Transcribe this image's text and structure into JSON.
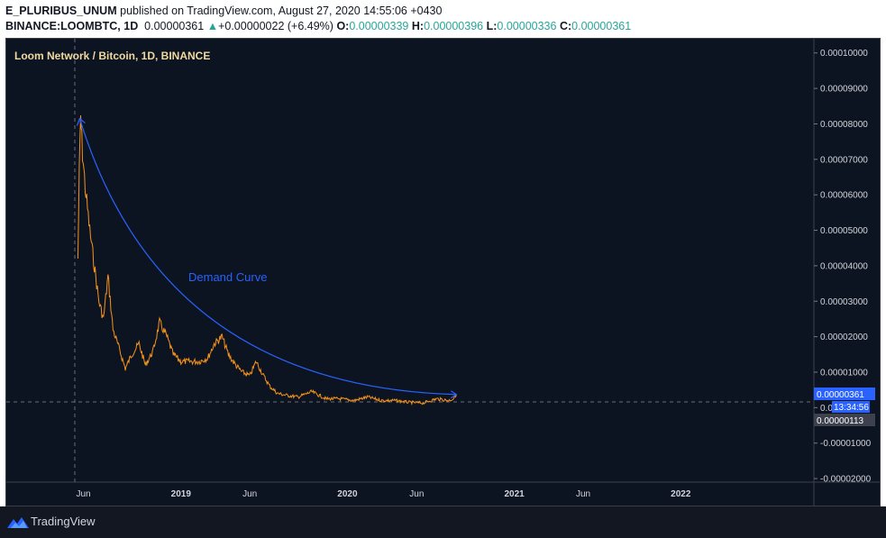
{
  "header": {
    "author": "E_PLURIBUS_UNUM",
    "published": "published on TradingView.com, August 27, 2020 14:55:06 +0430",
    "symbol": "BINANCE:LOOMBTC, 1D",
    "last": "0.00000361",
    "change": "+0.00000022 (+6.49%)",
    "o_label": "O:",
    "o": "0.00000339",
    "h_label": "H:",
    "h": "0.00000396",
    "l_label": "L:",
    "l": "0.00000336",
    "c_label": "C:",
    "c": "0.00000361"
  },
  "chart_data": {
    "type": "line",
    "title": "Loom Network / Bitcoin, 1D, BINANCE",
    "series": [
      {
        "name": "",
        "color": "#f7931a",
        "x": [
          "2018-05-20",
          "2018-05-23",
          "2018-05-26",
          "2018-05-30",
          "2018-06-05",
          "2018-06-15",
          "2018-06-25",
          "2018-07-05",
          "2018-07-15",
          "2018-07-25",
          "2018-08-05",
          "2018-08-20",
          "2018-09-01",
          "2018-09-15",
          "2018-10-01",
          "2018-10-15",
          "2018-11-01",
          "2018-11-15",
          "2018-12-01",
          "2018-12-15",
          "2019-01-01",
          "2019-01-20",
          "2019-02-10",
          "2019-03-01",
          "2019-03-15",
          "2019-04-01",
          "2019-04-15",
          "2019-05-01",
          "2019-05-15",
          "2019-06-01",
          "2019-06-15",
          "2019-07-01",
          "2019-07-15",
          "2019-08-01",
          "2019-08-20",
          "2019-09-15",
          "2019-10-15",
          "2019-11-15",
          "2019-12-15",
          "2020-01-15",
          "2020-02-15",
          "2020-03-15",
          "2020-04-15",
          "2020-05-15",
          "2020-06-15",
          "2020-07-15",
          "2020-08-10",
          "2020-08-20",
          "2020-08-27"
        ],
        "y": [
          4.2e-05,
          6.6e-05,
          8.2e-05,
          7.2e-05,
          6.2e-05,
          5e-05,
          4e-05,
          3e-05,
          2.5e-05,
          3.7e-05,
          2.2e-05,
          1.6e-05,
          1.1e-05,
          1.5e-05,
          1.8e-05,
          1.2e-05,
          1.6e-05,
          2.4e-05,
          2e-05,
          1.5e-05,
          1.3e-05,
          1.3e-05,
          1.3e-05,
          1.4e-05,
          1.8e-05,
          2e-05,
          1.5e-05,
          1.2e-05,
          1e-05,
          9e-06,
          1.3e-05,
          9e-06,
          6e-06,
          4e-06,
          3.5e-06,
          3e-06,
          4.5e-06,
          2.5e-06,
          2.5e-06,
          2e-06,
          3e-06,
          2e-06,
          2e-06,
          1.5e-06,
          1.3e-06,
          2.5e-06,
          2e-06,
          2.5e-06,
          3.61e-06
        ]
      }
    ],
    "annotations": [
      {
        "text": "Demand Curve",
        "color": "#2962ff"
      }
    ],
    "x_ticks": [
      "Jun",
      "2019",
      "Jun",
      "2020",
      "Jun",
      "2021",
      "Jun",
      "2022"
    ],
    "x_tick_dates": [
      "2018-06-01",
      "2019-01-01",
      "2019-06-01",
      "2020-01-01",
      "2020-06-01",
      "2021-01-01",
      "2021-06-01",
      "2022-01-01"
    ],
    "y_ticks": [
      "0.00010000",
      "0.00009000",
      "0.00008000",
      "0.00007000",
      "0.00006000",
      "0.00005000",
      "0.00004000",
      "0.00003000",
      "0.00002000",
      "0.00001000",
      "0.00000000",
      "-0.00001000",
      "-0.00002000"
    ],
    "y_tick_values": [
      0.0001,
      9e-05,
      8e-05,
      7e-05,
      6e-05,
      5e-05,
      4e-05,
      3e-05,
      2e-05,
      1e-05,
      0,
      -1e-05,
      -2e-05
    ],
    "ylim": [
      -2.1e-05,
      0.000104
    ],
    "xlim": [
      "2017-12-14",
      "2022-10-20"
    ],
    "price_label": "0.00000361",
    "timer_label": "13:34:56",
    "low_label": "0.00000113",
    "grid": false
  }
}
